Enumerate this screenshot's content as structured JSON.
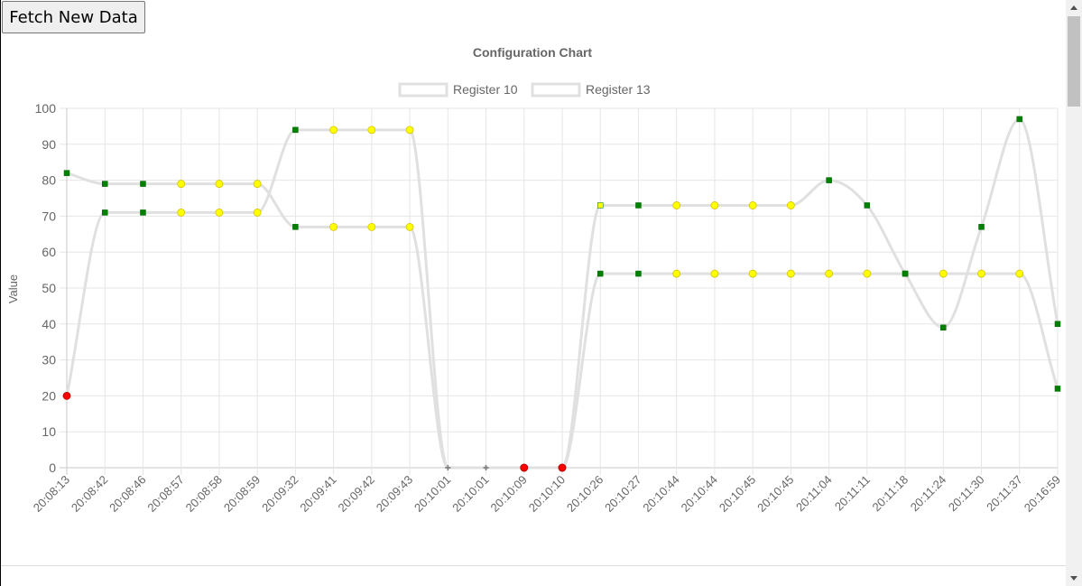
{
  "button": {
    "fetch_label": "Fetch New Data"
  },
  "chart_data": {
    "type": "line",
    "title": "Configuration Chart",
    "ylabel": "Value",
    "xlabel": "",
    "ylim": [
      0,
      100
    ],
    "ytick_step": 10,
    "grid": true,
    "legend_position": "top-center",
    "categories": [
      "20:08:13",
      "20:08:42",
      "20:08:46",
      "20:08:57",
      "20:08:58",
      "20:08:59",
      "20:09:32",
      "20:09:41",
      "20:09:42",
      "20:09:43",
      "20:10:01",
      "20:10:01",
      "20:10:09",
      "20:10:10",
      "20:10:26",
      "20:10:27",
      "20:10:44",
      "20:10:44",
      "20:10:45",
      "20:10:45",
      "20:11:04",
      "20:11:11",
      "20:11:18",
      "20:11:24",
      "20:11:30",
      "20:11:37",
      "20:16:59"
    ],
    "series": [
      {
        "name": "Register 10",
        "line_color": "#e0e0e0",
        "values": [
          20,
          71,
          71,
          71,
          71,
          71,
          94,
          94,
          94,
          94,
          0,
          0,
          0,
          0,
          54,
          54,
          54,
          54,
          54,
          54,
          54,
          54,
          54,
          54,
          54,
          54,
          22
        ],
        "point_styles": [
          "circle",
          "rect",
          "rect",
          "circle",
          "circle",
          "circle",
          "rect",
          "circle",
          "circle",
          "circle",
          "cross",
          "cross",
          "circle",
          "circle",
          "rect",
          "rect",
          "circle",
          "circle",
          "circle",
          "circle",
          "circle",
          "circle",
          "rect",
          "circle",
          "circle",
          "circle",
          "rect"
        ],
        "point_colors": [
          "#ff0000",
          "#008000",
          "#008000",
          "#ffff00",
          "#ffff00",
          "#ffff00",
          "#008000",
          "#ffff00",
          "#ffff00",
          "#ffff00",
          "#808080",
          "#808080",
          "#ff0000",
          "#ff0000",
          "#008000",
          "#008000",
          "#ffff00",
          "#ffff00",
          "#ffff00",
          "#ffff00",
          "#ffff00",
          "#ffff00",
          "#008000",
          "#ffff00",
          "#ffff00",
          "#ffff00",
          "#008000"
        ]
      },
      {
        "name": "Register 13",
        "line_color": "#e0e0e0",
        "values": [
          82,
          79,
          79,
          79,
          79,
          79,
          67,
          67,
          67,
          67,
          0,
          0,
          0,
          0,
          73,
          73,
          73,
          73,
          73,
          73,
          80,
          73,
          54,
          39,
          67,
          97,
          40
        ],
        "point_styles": [
          "rect",
          "rect",
          "rect",
          "circle",
          "circle",
          "circle",
          "rect",
          "circle",
          "circle",
          "circle",
          "cross",
          "cross",
          "circle",
          "circle",
          "rect",
          "rect",
          "circle",
          "circle",
          "circle",
          "circle",
          "rect",
          "rect",
          "rect",
          "rect",
          "rect",
          "rect",
          "rect"
        ],
        "point_colors": [
          "#008000",
          "#008000",
          "#008000",
          "#ffff00",
          "#ffff00",
          "#ffff00",
          "#008000",
          "#ffff00",
          "#ffff00",
          "#ffff00",
          "#808080",
          "#808080",
          "#ff0000",
          "#ff0000",
          "#ffff00",
          "#008000",
          "#ffff00",
          "#ffff00",
          "#ffff00",
          "#ffff00",
          "#008000",
          "#008000",
          "#008000",
          "#008000",
          "#008000",
          "#008000",
          "#008000"
        ]
      }
    ]
  }
}
